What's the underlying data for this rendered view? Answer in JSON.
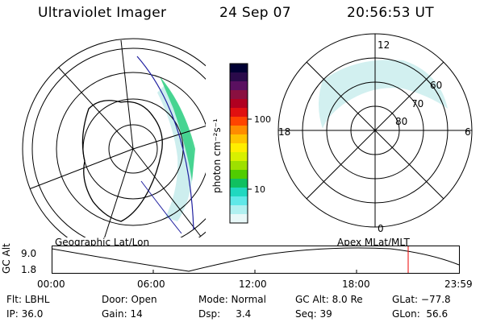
{
  "header": {
    "title": "Ultraviolet Imager",
    "date": "24 Sep 07",
    "time": "20:56:53 UT"
  },
  "colorbar": {
    "unit": "photon cm⁻²s⁻¹",
    "ticks": [
      "100",
      "10"
    ],
    "colors": [
      "#000033",
      "#2a0a4a",
      "#5a1060",
      "#8a1040",
      "#b00020",
      "#e01010",
      "#ff4400",
      "#ff8c00",
      "#ffc400",
      "#ffee00",
      "#d8f000",
      "#9ee000",
      "#50cc00",
      "#10c060",
      "#20d8c0",
      "#60e8e8",
      "#b0f0f0",
      "#e8f8f8"
    ]
  },
  "left_map": {
    "label": "Geographic Lat/Lon"
  },
  "right_map": {
    "label": "Apex MLat/MLT",
    "lat_labels": [
      "60",
      "70",
      "80"
    ],
    "mlt_labels": [
      "12",
      "18",
      "6",
      "0"
    ]
  },
  "alt_plot": {
    "ylabel": "GC Alt",
    "yticks": [
      "9.0",
      "1.8"
    ],
    "xticks": [
      "00:00",
      "06:00",
      "12:00",
      "18:00",
      "23:59"
    ]
  },
  "info": {
    "row1": [
      "Flt: LBHL",
      "Door: Open",
      "Mode: Normal",
      "GC Alt: 8.0 Re",
      "GLat: −77.8"
    ],
    "row2": [
      "IP: 36.0",
      "Gain: 14",
      "Dsp:     3.4",
      "Seq: 39",
      "GLon:  56.6"
    ]
  }
}
